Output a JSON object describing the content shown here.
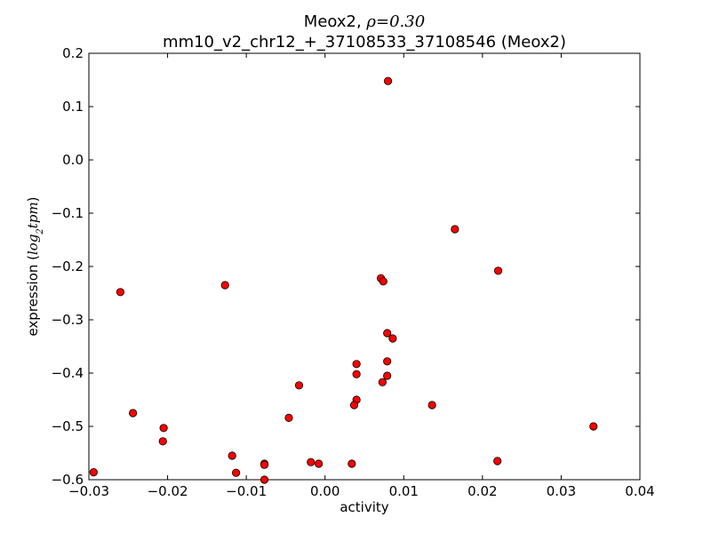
{
  "chart_data": {
    "type": "scatter",
    "title_line1_prefix": "Meox2, ",
    "title_line1_rho_symbol": "ρ",
    "title_line1_rho_value": "=0.30",
    "title_line2": "mm10_v2_chr12_+_37108533_37108546 (Meox2)",
    "xlabel": "activity",
    "ylabel_prefix": "expression (",
    "ylabel_math": "log",
    "ylabel_math_sub": "2",
    "ylabel_math_rest": "tpm",
    "ylabel_suffix": ")",
    "xlim": [
      -0.03,
      0.04
    ],
    "ylim": [
      -0.6,
      0.2
    ],
    "x_ticks": [
      -0.03,
      -0.02,
      -0.01,
      0.0,
      0.01,
      0.02,
      0.03,
      0.04
    ],
    "x_tick_labels": [
      "−0.03",
      "−0.02",
      "−0.01",
      "0.00",
      "0.01",
      "0.02",
      "0.03",
      "0.04"
    ],
    "y_ticks": [
      0.2,
      0.1,
      0.0,
      -0.1,
      -0.2,
      -0.3,
      -0.4,
      -0.5,
      -0.6
    ],
    "y_tick_labels": [
      "0.2",
      "0.1",
      "0.0",
      "−0.1",
      "−0.2",
      "−0.3",
      "−0.4",
      "−0.5",
      "−0.6"
    ],
    "grid": false,
    "marker_color": "#ff0000",
    "marker_edge_color": "#000000",
    "points": [
      {
        "x": 0.008,
        "y": 0.148
      },
      {
        "x": 0.0165,
        "y": -0.13
      },
      {
        "x": 0.022,
        "y": -0.208
      },
      {
        "x": -0.026,
        "y": -0.248
      },
      {
        "x": -0.0127,
        "y": -0.235
      },
      {
        "x": 0.0071,
        "y": -0.222
      },
      {
        "x": 0.0074,
        "y": -0.228
      },
      {
        "x": 0.0079,
        "y": -0.325
      },
      {
        "x": 0.0086,
        "y": -0.335
      },
      {
        "x": 0.004,
        "y": -0.383
      },
      {
        "x": 0.0079,
        "y": -0.378
      },
      {
        "x": 0.004,
        "y": -0.402
      },
      {
        "x": 0.0079,
        "y": -0.405
      },
      {
        "x": 0.0073,
        "y": -0.417
      },
      {
        "x": -0.0033,
        "y": -0.423
      },
      {
        "x": 0.004,
        "y": -0.45
      },
      {
        "x": 0.0037,
        "y": -0.46
      },
      {
        "x": 0.0136,
        "y": -0.46
      },
      {
        "x": -0.0244,
        "y": -0.475
      },
      {
        "x": -0.0046,
        "y": -0.484
      },
      {
        "x": -0.0205,
        "y": -0.503
      },
      {
        "x": 0.0341,
        "y": -0.5
      },
      {
        "x": -0.0206,
        "y": -0.528
      },
      {
        "x": -0.0118,
        "y": -0.555
      },
      {
        "x": -0.0018,
        "y": -0.567
      },
      {
        "x": -0.0008,
        "y": -0.57
      },
      {
        "x": 0.0034,
        "y": -0.57
      },
      {
        "x": 0.0219,
        "y": -0.565
      },
      {
        "x": -0.0077,
        "y": -0.57
      },
      {
        "x": -0.0077,
        "y": -0.572
      },
      {
        "x": -0.0113,
        "y": -0.587
      },
      {
        "x": -0.0294,
        "y": -0.586
      },
      {
        "x": -0.0077,
        "y": -0.6
      }
    ]
  }
}
